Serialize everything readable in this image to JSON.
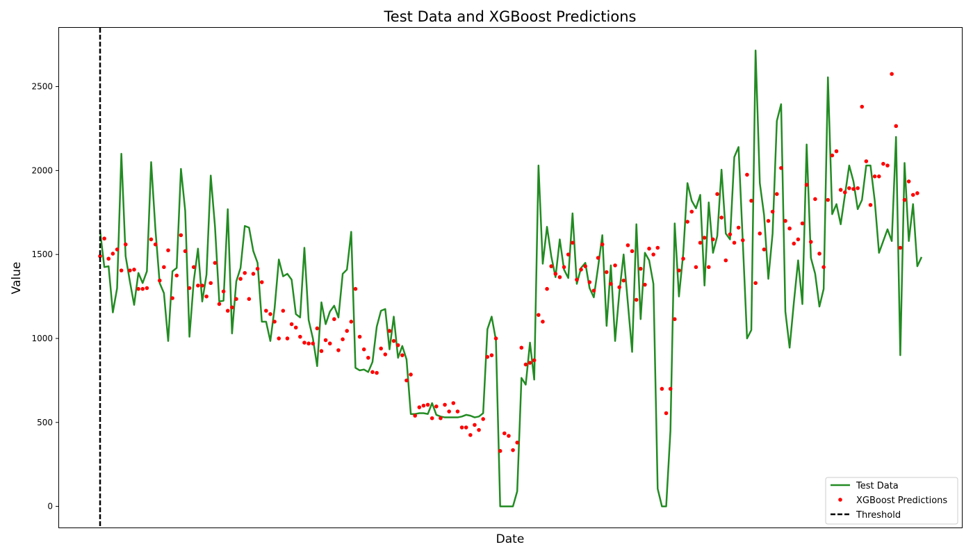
{
  "chart_data": {
    "type": "line",
    "title": "Test Data and XGBoost Predictions",
    "xlabel": "Date",
    "ylabel": "Value",
    "ylim": [
      -130,
      2850
    ],
    "y_ticks": [
      0,
      500,
      1000,
      1500,
      2000,
      2500
    ],
    "grid": false,
    "legend_position": "lower-right",
    "threshold_index": 0,
    "series": [
      {
        "name": "Test Data",
        "style": "line",
        "color": "#228b22",
        "values": [
          1640,
          1425,
          1430,
          1155,
          1300,
          2100,
          1490,
          1340,
          1200,
          1390,
          1330,
          1400,
          2050,
          1650,
          1330,
          1270,
          985,
          1400,
          1420,
          2010,
          1760,
          1010,
          1340,
          1535,
          1220,
          1380,
          1970,
          1665,
          1220,
          1225,
          1770,
          1030,
          1340,
          1420,
          1670,
          1660,
          1520,
          1450,
          1100,
          1100,
          985,
          1180,
          1470,
          1370,
          1385,
          1350,
          1145,
          1125,
          1540,
          1110,
          1000,
          835,
          1215,
          1085,
          1160,
          1195,
          1125,
          1385,
          1410,
          1635,
          825,
          810,
          815,
          800,
          860,
          1070,
          1165,
          1175,
          935,
          1130,
          885,
          955,
          875,
          550,
          550,
          555,
          555,
          550,
          615,
          545,
          535,
          530,
          530,
          530,
          530,
          535,
          545,
          540,
          530,
          535,
          555,
          1055,
          1130,
          990,
          0,
          0,
          0,
          0,
          90,
          765,
          725,
          975,
          755,
          2030,
          1445,
          1665,
          1490,
          1365,
          1590,
          1410,
          1360,
          1745,
          1325,
          1420,
          1450,
          1300,
          1245,
          1425,
          1615,
          1075,
          1435,
          985,
          1275,
          1500,
          1210,
          920,
          1680,
          1115,
          1510,
          1465,
          1325,
          105,
          0,
          0,
          450,
          1685,
          1250,
          1505,
          1925,
          1820,
          1775,
          1855,
          1315,
          1810,
          1510,
          1610,
          2005,
          1625,
          1590,
          2080,
          2140,
          1575,
          1000,
          1050,
          2715,
          1925,
          1735,
          1355,
          1625,
          2295,
          2395,
          1160,
          945,
          1215,
          1465,
          1205,
          2155,
          1480,
          1385,
          1190,
          1295,
          2555,
          1740,
          1800,
          1680,
          1855,
          2030,
          1935,
          1770,
          1825,
          2030,
          2030,
          1820,
          1510,
          1580,
          1650,
          1580,
          2200,
          900,
          2045,
          1580,
          1800,
          1430,
          1485
        ]
      },
      {
        "name": "XGBoost Predictions",
        "style": "scatter",
        "color": "#ff0000",
        "values": [
          1490,
          1595,
          1475,
          1505,
          1530,
          1405,
          1560,
          1405,
          1410,
          1295,
          1295,
          1300,
          1590,
          1560,
          1345,
          1425,
          1525,
          1240,
          1375,
          1615,
          1520,
          1300,
          1425,
          1315,
          1315,
          1250,
          1330,
          1450,
          1205,
          1280,
          1165,
          1185,
          1235,
          1355,
          1390,
          1235,
          1385,
          1415,
          1335,
          1165,
          1145,
          1100,
          1000,
          1165,
          1000,
          1085,
          1065,
          1010,
          975,
          970,
          970,
          1060,
          925,
          990,
          970,
          1115,
          930,
          995,
          1045,
          1100,
          1295,
          1010,
          935,
          885,
          800,
          795,
          940,
          905,
          1045,
          985,
          960,
          900,
          750,
          785,
          540,
          590,
          600,
          605,
          525,
          595,
          525,
          605,
          565,
          615,
          565,
          470,
          470,
          425,
          485,
          455,
          520,
          890,
          900,
          1000,
          330,
          435,
          420,
          335,
          380,
          945,
          845,
          855,
          870,
          1140,
          1100,
          1295,
          1430,
          1385,
          1365,
          1425,
          1500,
          1570,
          1350,
          1410,
          1430,
          1335,
          1285,
          1480,
          1560,
          1395,
          1325,
          1435,
          1305,
          1345,
          1555,
          1520,
          1230,
          1415,
          1320,
          1535,
          1500,
          1540,
          700,
          555,
          700,
          1115,
          1405,
          1475,
          1695,
          1755,
          1425,
          1570,
          1600,
          1425,
          1590,
          1860,
          1720,
          1465,
          1620,
          1570,
          1660,
          1585,
          1975,
          1820,
          1330,
          1625,
          1530,
          1700,
          1755,
          1860,
          2015,
          1700,
          1655,
          1565,
          1590,
          1685,
          1915,
          1575,
          1830,
          1505,
          1425,
          1825,
          2090,
          2115,
          1885,
          1870,
          1895,
          1890,
          1895,
          2380,
          2055,
          1795,
          1965,
          1965,
          2040,
          2030,
          2575,
          2265,
          1540,
          1825,
          1935,
          1855,
          1865
        ]
      },
      {
        "name": "Threshold",
        "style": "dashed-vertical",
        "color": "#000000"
      }
    ]
  }
}
